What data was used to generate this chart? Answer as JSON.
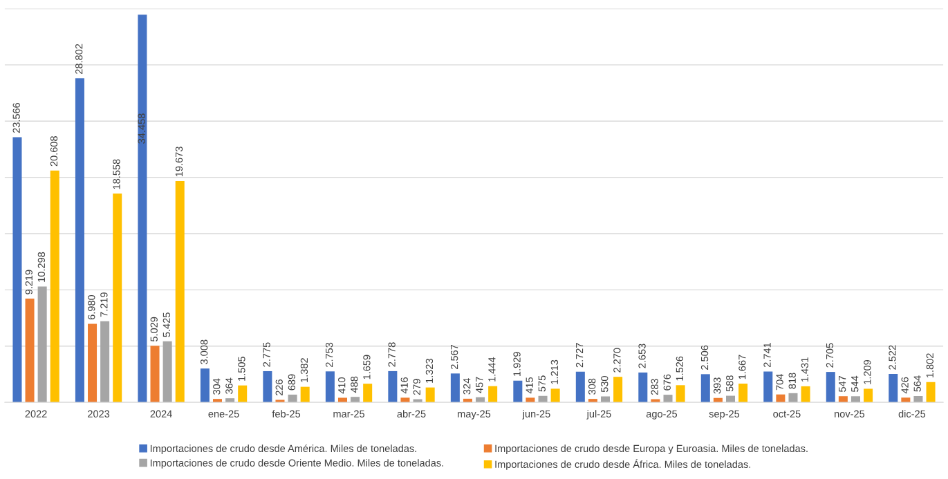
{
  "chart_data": {
    "type": "bar",
    "categories": [
      "2022",
      "2023",
      "2024",
      "ene-25",
      "feb-25",
      "mar-25",
      "abr-25",
      "may-25",
      "jun-25",
      "jul-25",
      "ago-25",
      "sep-25",
      "oct-25",
      "nov-25",
      "dic-25"
    ],
    "series": [
      {
        "name": "Importaciones de crudo desde América. Miles de toneladas.",
        "color": "#4472c4",
        "values": [
          23566,
          28802,
          34458,
          3008,
          2775,
          2753,
          2778,
          2567,
          1929,
          2727,
          2653,
          2506,
          2741,
          2705,
          2522
        ],
        "value_labels": [
          "23.566",
          "28.802",
          "34.458",
          "3.008",
          "2.775",
          "2.753",
          "2.778",
          "2.567",
          "1.929",
          "2.727",
          "2.653",
          "2.506",
          "2.741",
          "2.705",
          "2.522"
        ]
      },
      {
        "name": "Importaciones de crudo desde Europa y Euroasia. Miles de toneladas.",
        "color": "#ed7d31",
        "values": [
          9219,
          6980,
          5029,
          304,
          226,
          410,
          416,
          324,
          415,
          308,
          283,
          393,
          704,
          547,
          426
        ],
        "value_labels": [
          "9.219",
          "6.980",
          "5.029",
          "304",
          "226",
          "410",
          "416",
          "324",
          "415",
          "308",
          "283",
          "393",
          "704",
          "547",
          "426"
        ]
      },
      {
        "name": "Importaciones de crudo desde Oriente Medio. Miles de toneladas.",
        "color": "#a5a5a5",
        "values": [
          10298,
          7219,
          5425,
          364,
          689,
          488,
          279,
          457,
          575,
          530,
          676,
          588,
          818,
          544,
          564
        ],
        "value_labels": [
          "10.298",
          "7.219",
          "5.425",
          "364",
          "689",
          "488",
          "279",
          "457",
          "575",
          "530",
          "676",
          "588",
          "818",
          "544",
          "564"
        ]
      },
      {
        "name": "Importaciones de crudo desde África. Miles de toneladas.",
        "color": "#ffc000",
        "values": [
          20608,
          18558,
          19673,
          1505,
          1382,
          1659,
          1323,
          1444,
          1213,
          2270,
          1526,
          1667,
          1431,
          1209,
          1802
        ],
        "value_labels": [
          "20.608",
          "18.558",
          "19.673",
          "1.505",
          "1.382",
          "1.659",
          "1.323",
          "1.444",
          "1.213",
          "2.270",
          "1.526",
          "1.667",
          "1.431",
          "1.209",
          "1.802"
        ]
      }
    ],
    "ylim": [
      0,
      35000
    ],
    "yticks": [
      {
        "value": 0,
        "label": null
      },
      {
        "value": 5000,
        "label": null
      },
      {
        "value": 10000,
        "label": null
      },
      {
        "value": 15000,
        "label": null
      },
      {
        "value": 20000,
        "label": null
      },
      {
        "value": 25000,
        "label": null
      },
      {
        "value": 30000,
        "label": null
      },
      {
        "value": 35000,
        "label": null
      }
    ],
    "tick_labels": "x",
    "grid": "y",
    "legend": "bottom"
  }
}
